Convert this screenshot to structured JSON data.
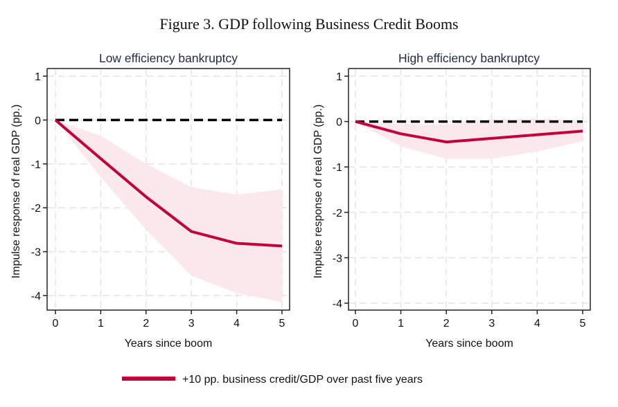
{
  "title": "Figure 3. GDP following Business Credit Booms",
  "colors": {
    "line": "#c2003b",
    "band": "#fbe8ed",
    "zero_line": "#000000",
    "grid": "#e4e4e4",
    "subtitle": "#1e2a44"
  },
  "legend": {
    "label": "+10 pp. business credit/GDP over past five years",
    "placement": "bottom-center"
  },
  "chart_data": [
    {
      "type": "line",
      "title": "Low efficiency bankruptcy",
      "xlabel": "Years since boom",
      "ylabel": "Impulse response of real GDP (pp.)",
      "x": [
        0,
        1,
        2,
        3,
        4,
        5
      ],
      "xlim": [
        0,
        5
      ],
      "ylim": [
        -4.3,
        1.15
      ],
      "xticks": [
        "0",
        "1",
        "2",
        "3",
        "4",
        "5"
      ],
      "yticks": [
        1,
        0,
        -1,
        -2,
        -3,
        -4
      ],
      "ytick_labels": [
        "1",
        "0",
        "-1",
        "-2",
        "-3",
        "-4"
      ],
      "grid": true,
      "reference_line": 0,
      "series": [
        {
          "name": "+10 pp. business credit/GDP over past five years",
          "values": [
            0,
            -0.88,
            -1.75,
            -2.54,
            -2.81,
            -2.87
          ],
          "band_upper": [
            0,
            -0.36,
            -1.0,
            -1.53,
            -1.7,
            -1.58
          ],
          "band_lower": [
            0,
            -1.3,
            -2.5,
            -3.55,
            -3.94,
            -4.15
          ]
        }
      ]
    },
    {
      "type": "line",
      "title": "High efficiency bankruptcy",
      "xlabel": "Years since boom",
      "ylabel": "Impulse response of real GDP (pp.)",
      "x": [
        0,
        1,
        2,
        3,
        4,
        5
      ],
      "xlim": [
        0,
        5
      ],
      "ylim": [
        -4.3,
        1.15
      ],
      "xticks": [
        "0",
        "1",
        "2",
        "3",
        "4",
        "5"
      ],
      "yticks": [
        1,
        0,
        -1,
        -2,
        -3,
        -4
      ],
      "ytick_labels": [
        "1",
        "0",
        "-1",
        "-2",
        "-3",
        "-4"
      ],
      "grid": true,
      "reference_line": 0,
      "series": [
        {
          "name": "+10 pp. business credit/GDP over past five years",
          "values": [
            0,
            -0.27,
            -0.45,
            -0.37,
            -0.29,
            -0.21
          ],
          "band_upper": [
            0,
            -0.05,
            -0.07,
            0.05,
            0.06,
            0.03
          ],
          "band_lower": [
            0,
            -0.55,
            -0.82,
            -0.82,
            -0.66,
            -0.43
          ]
        }
      ]
    }
  ]
}
